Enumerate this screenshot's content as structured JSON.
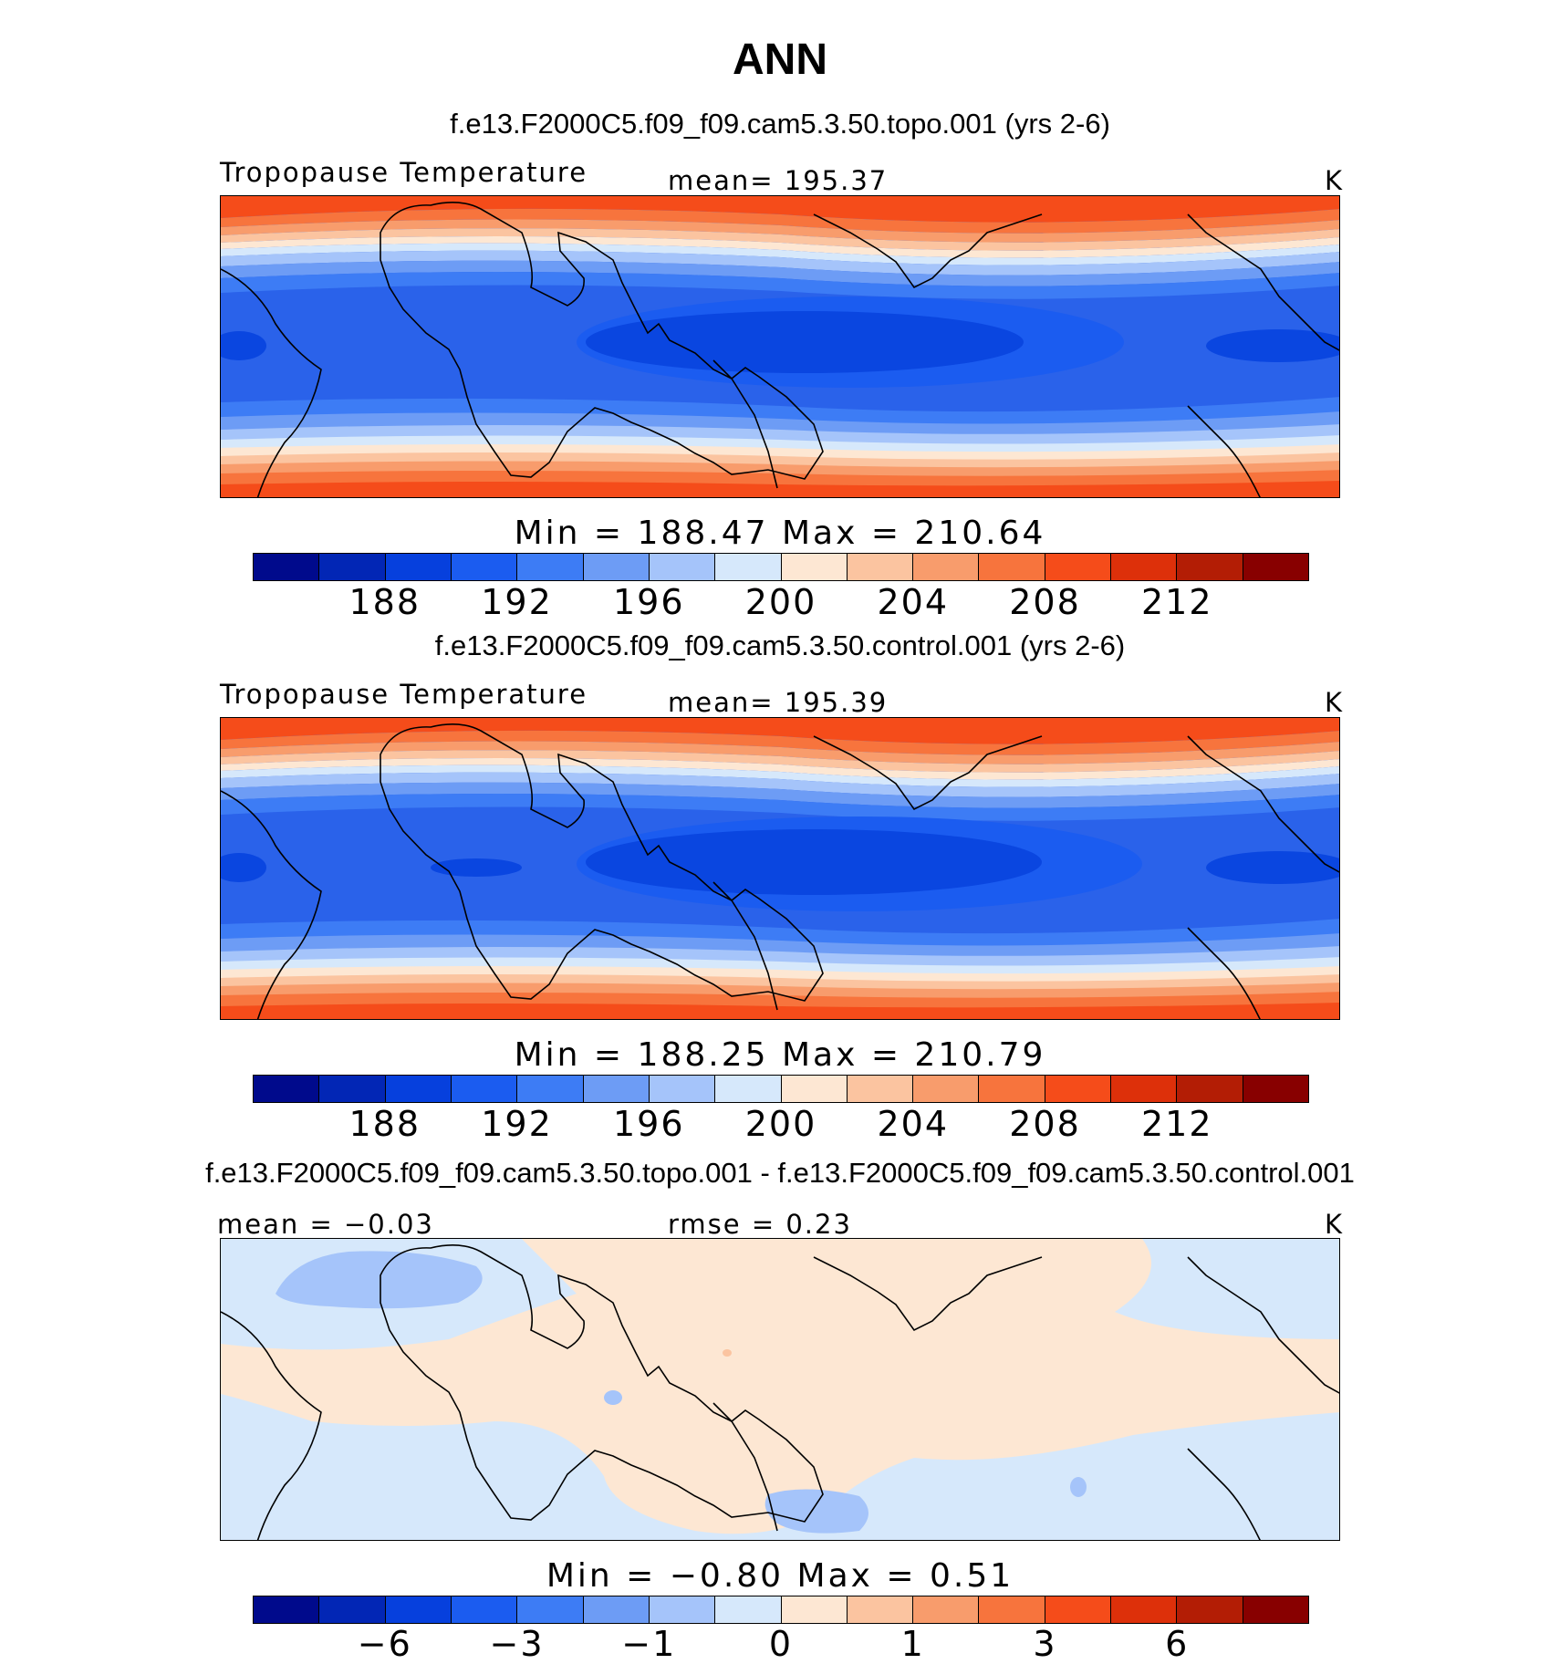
{
  "main_title": "ANN",
  "colorbar_colors": [
    "#000a8c",
    "#0226b5",
    "#0640dd",
    "#1b5cf0",
    "#3d7cf5",
    "#6d9cf5",
    "#a5c4fa",
    "#d6e8fb",
    "#fde7d3",
    "#fbc4a0",
    "#f89c6c",
    "#f7743d",
    "#f54c1a",
    "#dd300a",
    "#b31d05",
    "#880000"
  ],
  "panels": [
    {
      "case_title": "f.e13.F2000C5.f09_f09.cam5.3.50.topo.001 (yrs 2-6)",
      "variable": "Tropopause Temperature",
      "stat_label": "mean=  195.37",
      "units": "K",
      "minmax": "Min  =  188.47  Max  =  210.64",
      "ticks": [
        "188",
        "192",
        "196",
        "200",
        "204",
        "208",
        "212"
      ]
    },
    {
      "case_title": "f.e13.F2000C5.f09_f09.cam5.3.50.control.001 (yrs 2-6)",
      "variable": "Tropopause Temperature",
      "stat_label": "mean=  195.39",
      "units": "K",
      "minmax": "Min  =  188.25  Max  =  210.79",
      "ticks": [
        "188",
        "192",
        "196",
        "200",
        "204",
        "208",
        "212"
      ]
    },
    {
      "case_title": "f.e13.F2000C5.f09_f09.cam5.3.50.topo.001 - f.e13.F2000C5.f09_f09.cam5.3.50.control.001",
      "stat_left": "mean  =    −0.03",
      "stat_label": "rmse  =     0.23",
      "units": "K",
      "minmax": "Min  =    −0.80  Max  =     0.51",
      "ticks": [
        "−6",
        "−3",
        "−1",
        "0",
        "1",
        "3",
        "6"
      ]
    }
  ]
}
